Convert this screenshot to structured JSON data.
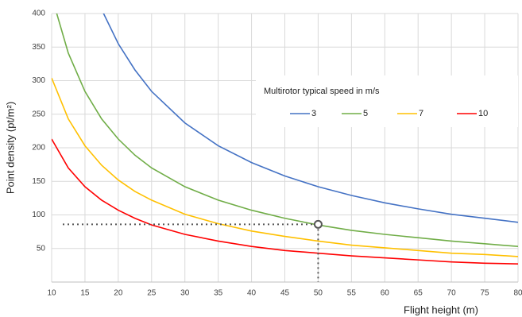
{
  "chart_data": {
    "type": "line",
    "x_label": "Flight height (m)",
    "y_label": "Point density (pt/m²)",
    "legend_title": "Multirotor typical speed in m/s",
    "legend": "upper right",
    "grid": true,
    "x": [
      10,
      12.5,
      15,
      17.5,
      20,
      22.5,
      25,
      30,
      35,
      40,
      45,
      50,
      55,
      60,
      65,
      70,
      75,
      80
    ],
    "series": [
      {
        "name": "3",
        "color": "#4472c4",
        "values": [
          null,
          null,
          null,
          406,
          355,
          316,
          284,
          237,
          203,
          178,
          158,
          142,
          129,
          118,
          109,
          101,
          95,
          89
        ]
      },
      {
        "name": "5",
        "color": "#70ad47",
        "values": [
          426,
          341,
          284,
          243,
          213,
          189,
          170,
          142,
          122,
          107,
          95,
          85,
          77,
          71,
          66,
          61,
          57,
          53
        ]
      },
      {
        "name": "7",
        "color": "#ffc000",
        "values": [
          304,
          243,
          203,
          174,
          152,
          135,
          122,
          101,
          87,
          76,
          68,
          61,
          55,
          51,
          47,
          43,
          41,
          38
        ]
      },
      {
        "name": "10",
        "color": "#ff0000",
        "values": [
          213,
          170,
          142,
          122,
          107,
          95,
          85,
          71,
          61,
          53,
          47,
          43,
          39,
          36,
          33,
          30,
          28,
          27
        ]
      }
    ],
    "marker": {
      "x": 50,
      "y": 86
    },
    "xlim": [
      10,
      80
    ],
    "xticks": [
      10,
      15,
      20,
      25,
      30,
      35,
      40,
      45,
      50,
      55,
      60,
      65,
      70,
      75,
      80
    ],
    "ylim": [
      0,
      400
    ],
    "yticks": [
      50,
      100,
      150,
      200,
      250,
      300,
      350,
      400
    ]
  }
}
